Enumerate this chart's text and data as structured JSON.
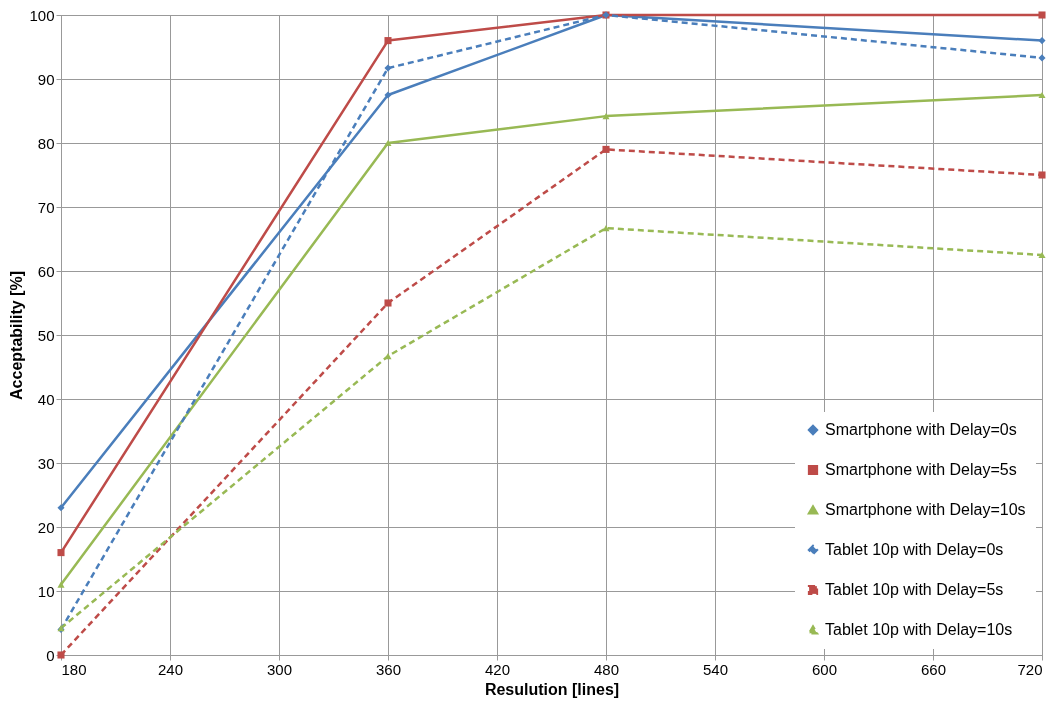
{
  "chart_data": {
    "type": "line",
    "xlabel": "Resulution [lines]",
    "ylabel": "Acceptability [%]",
    "x": [
      180,
      360,
      480,
      720
    ],
    "xlim": [
      180,
      720
    ],
    "xticks": [
      180,
      240,
      300,
      360,
      420,
      480,
      540,
      600,
      660,
      720
    ],
    "ylim": [
      0,
      100
    ],
    "yticks": [
      0,
      10,
      20,
      30,
      40,
      50,
      60,
      70,
      80,
      90,
      100
    ],
    "grid": true,
    "legend": "bottom right",
    "series": [
      {
        "name": "Smartphone with Delay=0s",
        "color": "#4a7ebb",
        "marker": "diamond",
        "line_style": "solid",
        "values": [
          23,
          87.5,
          100,
          96
        ]
      },
      {
        "name": "Smartphone with Delay=5s",
        "color": "#be4b48",
        "marker": "square",
        "line_style": "solid",
        "values": [
          16,
          96,
          100,
          100
        ]
      },
      {
        "name": "Smartphone with Delay=10s",
        "color": "#98b954",
        "marker": "triangle",
        "line_style": "solid",
        "values": [
          11,
          80,
          84.2,
          87.5
        ]
      },
      {
        "name": "Tablet 10p with Delay=0s",
        "color": "#4a7ebb",
        "marker": "diamond",
        "line_style": "dashed",
        "values": [
          4,
          91.7,
          100,
          93.3
        ]
      },
      {
        "name": "Tablet 10p with Delay=5s",
        "color": "#be4b48",
        "marker": "square",
        "line_style": "dashed",
        "values": [
          0,
          55,
          79,
          75
        ]
      },
      {
        "name": "Tablet 10p with Delay=10s",
        "color": "#98b954",
        "marker": "triangle",
        "line_style": "dashed",
        "values": [
          4.2,
          46.7,
          66.7,
          62.5
        ]
      }
    ]
  }
}
